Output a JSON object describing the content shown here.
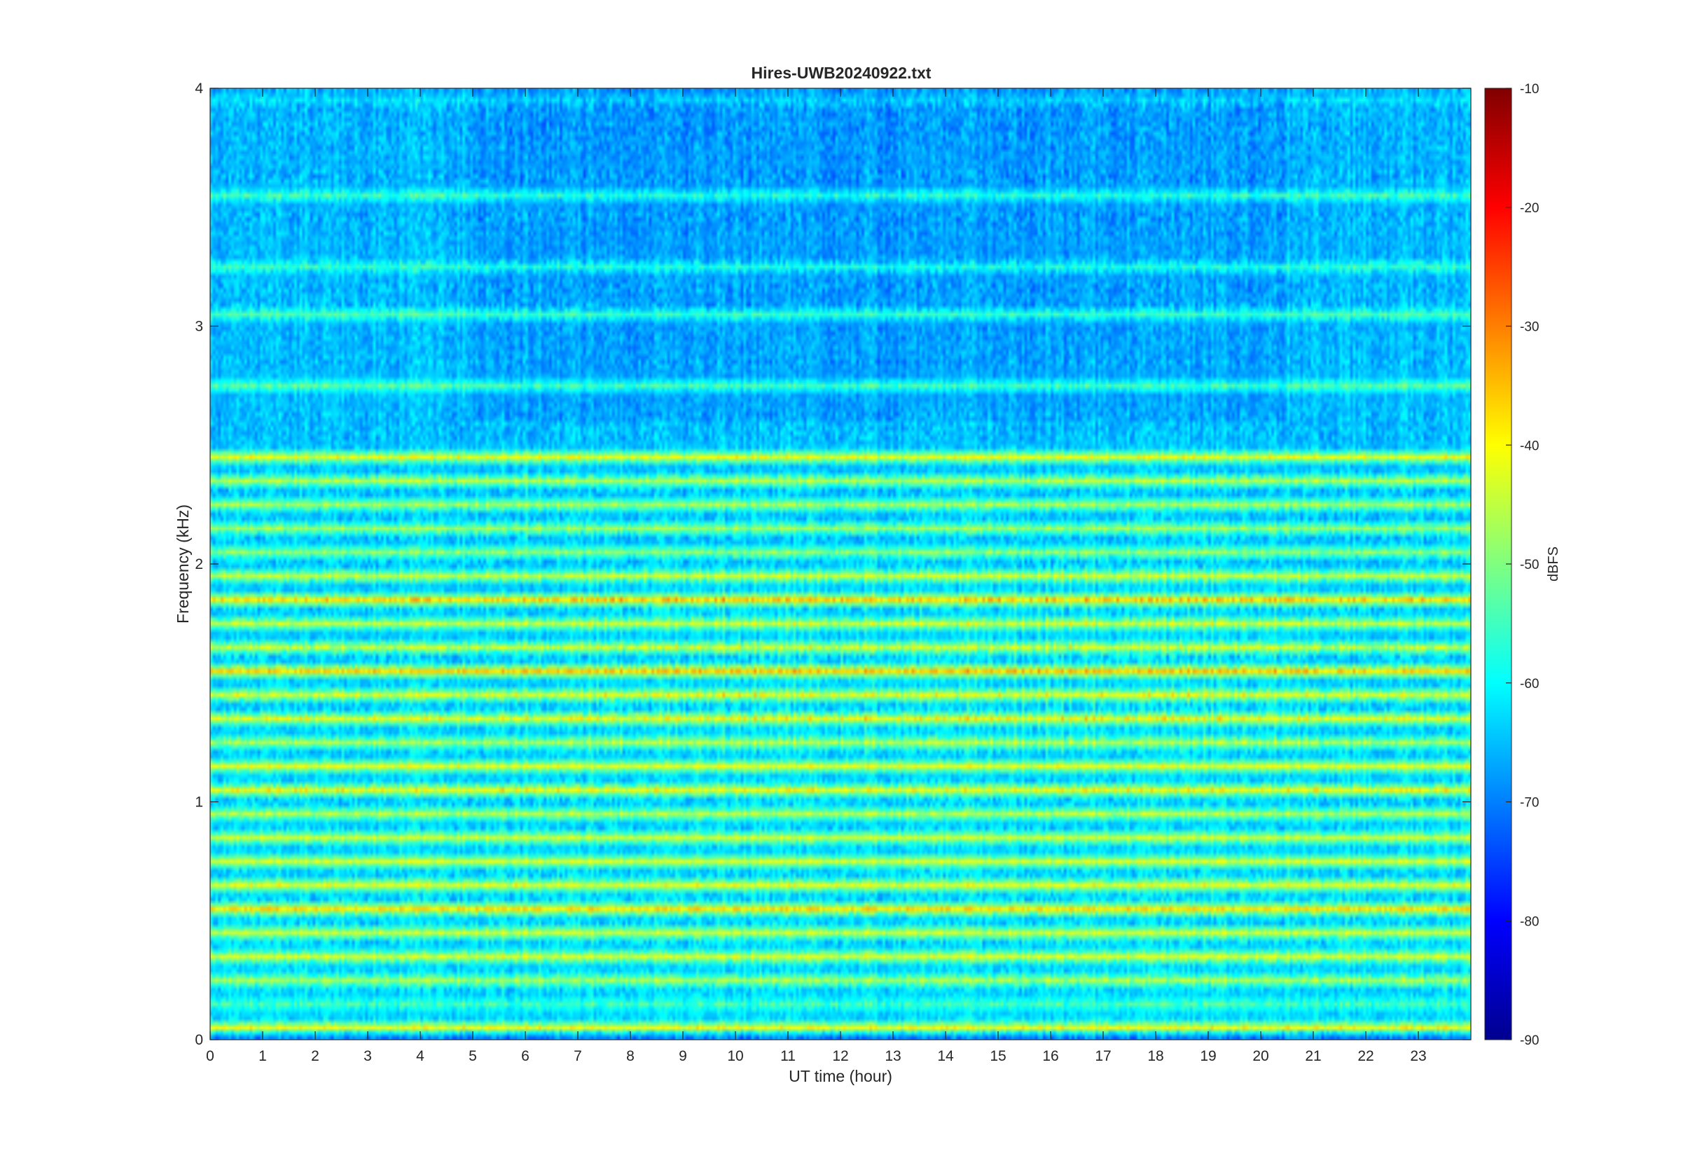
{
  "chart_data": {
    "type": "heatmap",
    "title": "Hires-UWB20240922.txt",
    "xlabel": "UT time (hour)",
    "ylabel": "Frequency (kHz)",
    "xlim": [
      0,
      24
    ],
    "ylim": [
      0,
      4
    ],
    "x_ticks": [
      0,
      1,
      2,
      3,
      4,
      5,
      6,
      7,
      8,
      9,
      10,
      11,
      12,
      13,
      14,
      15,
      16,
      17,
      18,
      19,
      20,
      21,
      22,
      23
    ],
    "y_ticks": [
      0,
      1,
      2,
      3,
      4
    ],
    "colorbar": {
      "label": "dBFS",
      "range": [
        -90,
        -10
      ],
      "ticks": [
        -90,
        -80,
        -70,
        -60,
        -50,
        -40,
        -30,
        -20,
        -10
      ],
      "colormap": "jet"
    },
    "background_level_dbfs": -60,
    "bands": [
      {
        "freq_khz": 3.95,
        "level_dbfs": -62
      },
      {
        "freq_khz": 3.55,
        "level_dbfs": -55
      },
      {
        "freq_khz": 3.25,
        "level_dbfs": -56
      },
      {
        "freq_khz": 3.05,
        "level_dbfs": -54
      },
      {
        "freq_khz": 2.75,
        "level_dbfs": -53
      },
      {
        "freq_khz": 2.45,
        "level_dbfs": -42
      },
      {
        "freq_khz": 2.35,
        "level_dbfs": -46
      },
      {
        "freq_khz": 2.25,
        "level_dbfs": -47
      },
      {
        "freq_khz": 2.15,
        "level_dbfs": -48
      },
      {
        "freq_khz": 2.05,
        "level_dbfs": -49
      },
      {
        "freq_khz": 1.95,
        "level_dbfs": -45
      },
      {
        "freq_khz": 1.85,
        "level_dbfs": -38
      },
      {
        "freq_khz": 1.75,
        "level_dbfs": -45
      },
      {
        "freq_khz": 1.65,
        "level_dbfs": -45
      },
      {
        "freq_khz": 1.55,
        "level_dbfs": -37
      },
      {
        "freq_khz": 1.45,
        "level_dbfs": -43
      },
      {
        "freq_khz": 1.35,
        "level_dbfs": -42
      },
      {
        "freq_khz": 1.25,
        "level_dbfs": -47
      },
      {
        "freq_khz": 1.15,
        "level_dbfs": -42
      },
      {
        "freq_khz": 1.05,
        "level_dbfs": -41
      },
      {
        "freq_khz": 0.95,
        "level_dbfs": -46
      },
      {
        "freq_khz": 0.85,
        "level_dbfs": -44
      },
      {
        "freq_khz": 0.75,
        "level_dbfs": -43
      },
      {
        "freq_khz": 0.65,
        "level_dbfs": -42
      },
      {
        "freq_khz": 0.55,
        "level_dbfs": -38
      },
      {
        "freq_khz": 0.45,
        "level_dbfs": -44
      },
      {
        "freq_khz": 0.35,
        "level_dbfs": -43
      },
      {
        "freq_khz": 0.25,
        "level_dbfs": -47
      },
      {
        "freq_khz": 0.15,
        "level_dbfs": -55
      },
      {
        "freq_khz": 0.05,
        "level_dbfs": -40
      },
      {
        "freq_khz": 0.01,
        "level_dbfs": -70
      }
    ]
  }
}
